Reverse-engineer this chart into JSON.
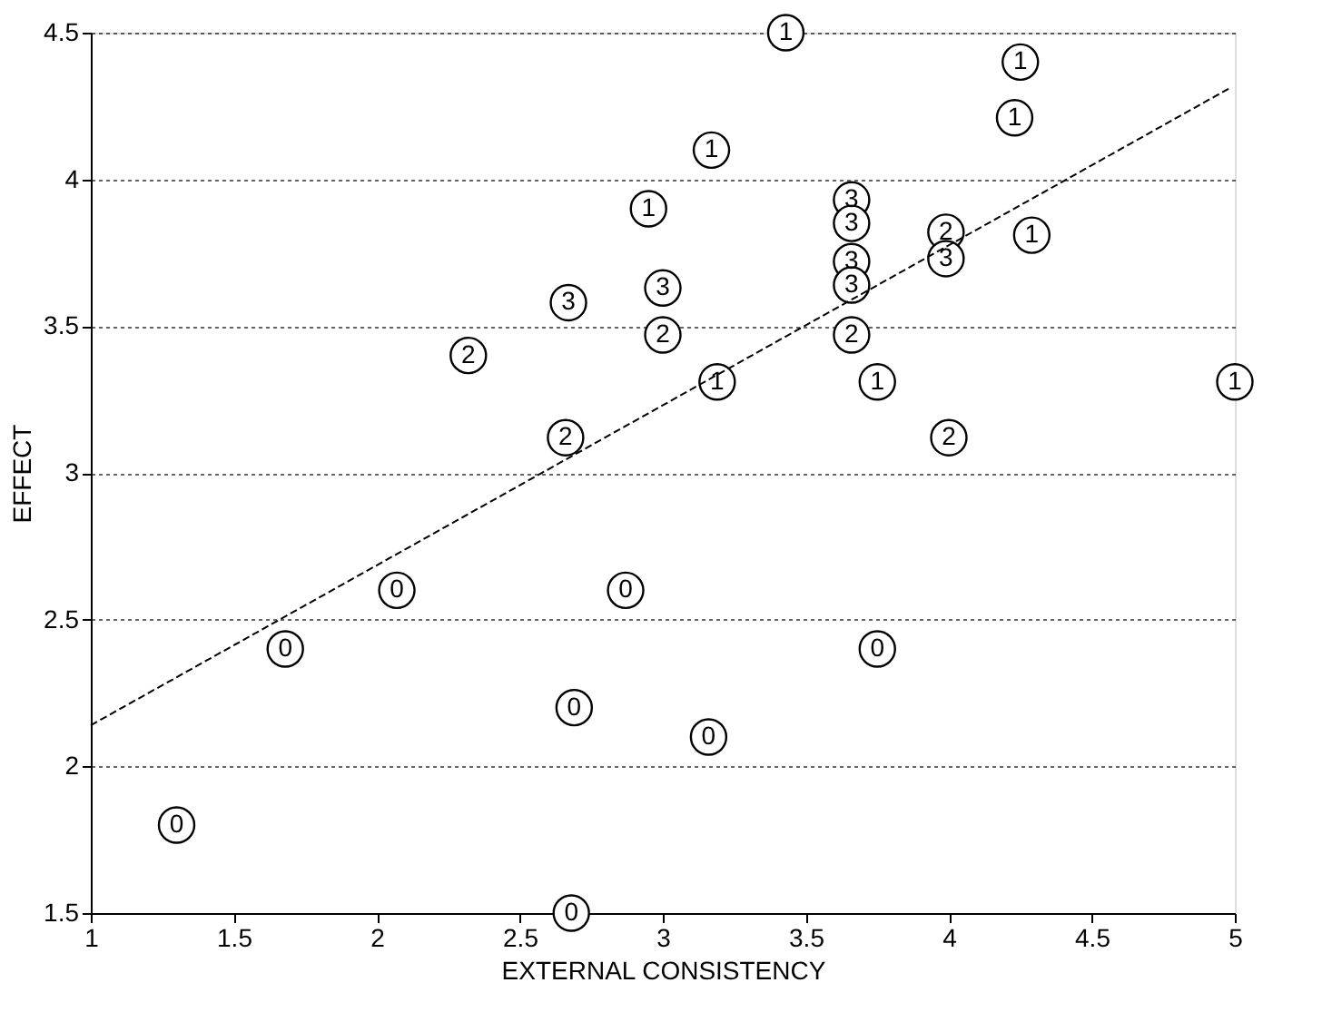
{
  "chart_data": {
    "type": "scatter",
    "xlabel": "EXTERNAL CONSISTENCY",
    "ylabel": "EFFECT",
    "xlim": [
      1,
      5
    ],
    "ylim": [
      1.5,
      4.5
    ],
    "xticks": [
      1,
      1.5,
      2,
      2.5,
      3,
      3.5,
      4,
      4.5,
      5
    ],
    "yticks": [
      1.5,
      2,
      2.5,
      3,
      3.5,
      4,
      4.5
    ],
    "grid": "y",
    "legend": false,
    "marker": "circle",
    "series": [
      {
        "name": "0",
        "color": "#000000",
        "x": [
          1.3,
          1.68,
          2.07,
          2.69,
          2.68,
          2.87,
          3.75,
          3.16
        ],
        "values": [
          1.8,
          2.4,
          2.6,
          2.2,
          1.5,
          2.6,
          2.4,
          2.1
        ]
      },
      {
        "name": "1",
        "color": "#000000",
        "x": [
          3.43,
          4.25,
          4.23,
          3.17,
          2.95,
          4.29,
          3.19,
          3.75,
          5.0
        ],
        "values": [
          4.5,
          4.4,
          4.21,
          4.1,
          3.9,
          3.81,
          3.31,
          3.31,
          3.31
        ]
      },
      {
        "name": "2",
        "color": "#000000",
        "x": [
          2.32,
          2.66,
          3.0,
          3.66,
          3.99,
          4.0
        ],
        "values": [
          3.4,
          3.12,
          3.47,
          3.47,
          3.82,
          3.12
        ]
      },
      {
        "name": "3",
        "color": "#000000",
        "x": [
          2.67,
          3.0,
          3.66,
          3.66,
          3.66,
          3.66,
          3.99
        ],
        "values": [
          3.58,
          3.63,
          3.93,
          3.85,
          3.72,
          3.64,
          3.73
        ]
      },
      {
        "type": "line",
        "line_style": "dashed",
        "marker": "none",
        "color": "#000000",
        "x": [
          1,
          4.98
        ],
        "values": [
          2.14,
          4.31
        ]
      }
    ]
  }
}
